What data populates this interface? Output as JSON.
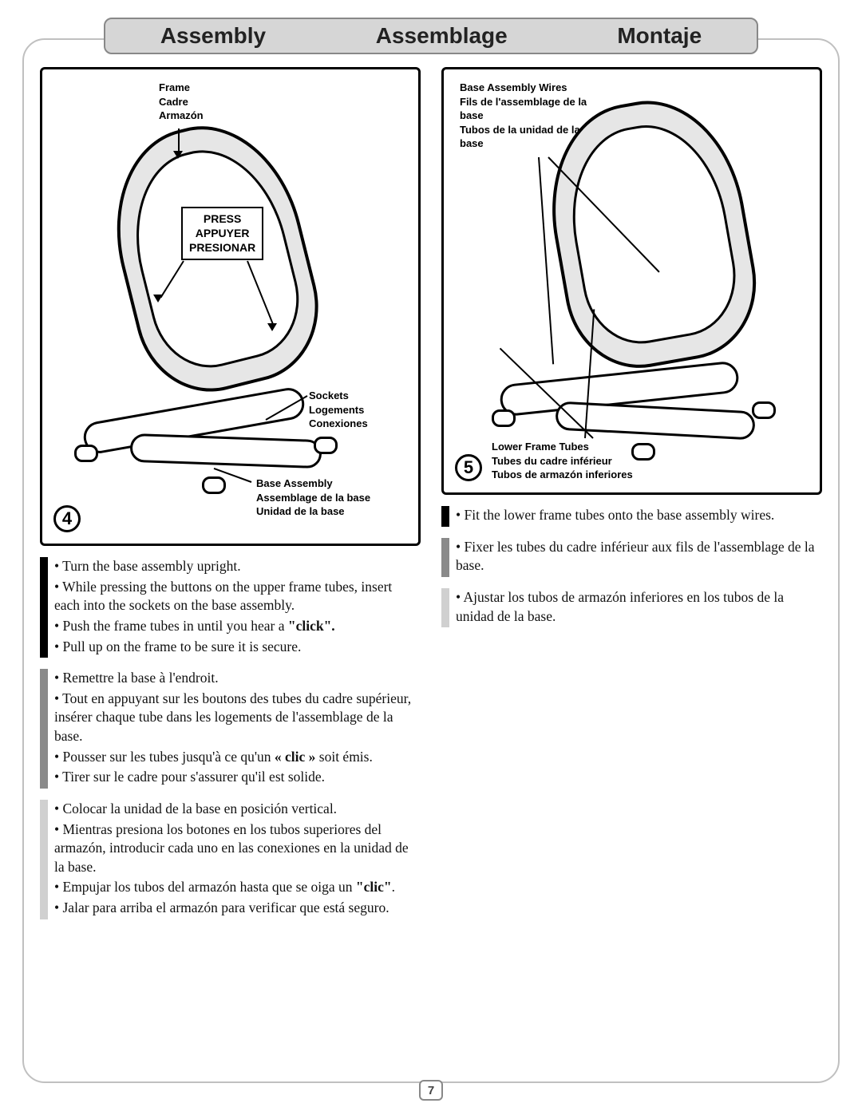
{
  "header": {
    "en": "Assembly",
    "fr": "Assemblage",
    "es": "Montaje"
  },
  "page_number": "7",
  "step4": {
    "number": "4",
    "labels": {
      "frame": {
        "en": "Frame",
        "fr": "Cadre",
        "es": "Armazón"
      },
      "press": {
        "en": "PRESS",
        "fr": "APPUYER",
        "es": "PRESIONAR"
      },
      "sockets": {
        "en": "Sockets",
        "fr": "Logements",
        "es": "Conexiones"
      },
      "base_assembly": {
        "en": "Base Assembly",
        "fr": "Assemblage de la base",
        "es": "Unidad de la base"
      }
    },
    "instructions": {
      "en": [
        "Turn the base assembly upright.",
        "While pressing the buttons on the upper frame tubes, insert each into the sockets on the base assembly.",
        "Push the frame tubes in until you hear a <b>\"click\".</b>",
        "Pull up on the frame to be sure it is secure."
      ],
      "fr": [
        "Remettre la base à l'endroit.",
        "Tout en appuyant sur les boutons des tubes du cadre supérieur, insérer chaque tube dans les logements de l'assemblage de la base.",
        "Pousser sur les tubes jusqu'à ce qu'un <b>« clic »</b> soit émis.",
        "Tirer sur le cadre pour s'assurer qu'il est solide."
      ],
      "es": [
        "Colocar la unidad de la base en posición vertical.",
        "Mientras presiona los botones en los tubos superiores del armazón, introducir cada uno en las conexiones en la unidad de la base.",
        "Empujar los tubos del armazón hasta que se oiga un <b>\"clic\"</b>.",
        "Jalar para arriba el armazón para verificar que está seguro."
      ]
    }
  },
  "step5": {
    "number": "5",
    "labels": {
      "wires": {
        "en": "Base Assembly Wires",
        "fr": "Fils de l'assemblage de la base",
        "es": "Tubos de la unidad de la base"
      },
      "lower_tubes": {
        "en": "Lower Frame Tubes",
        "fr": "Tubes du cadre inférieur",
        "es": "Tubos de armazón inferiores"
      }
    },
    "instructions": {
      "en": [
        "Fit the lower frame tubes onto the base assembly wires."
      ],
      "fr": [
        "Fixer les tubes du cadre inférieur aux fils de l'assemblage de la base."
      ],
      "es": [
        "Ajustar los tubos de armazón inferiores en los tubos de la unidad de la base."
      ]
    }
  },
  "style": {
    "lang_bar_colors": {
      "en": "#000000",
      "fr": "#8a8a8a",
      "es": "#d0d0d0"
    },
    "border_color": "#000000",
    "page_bg": "#ffffff"
  }
}
